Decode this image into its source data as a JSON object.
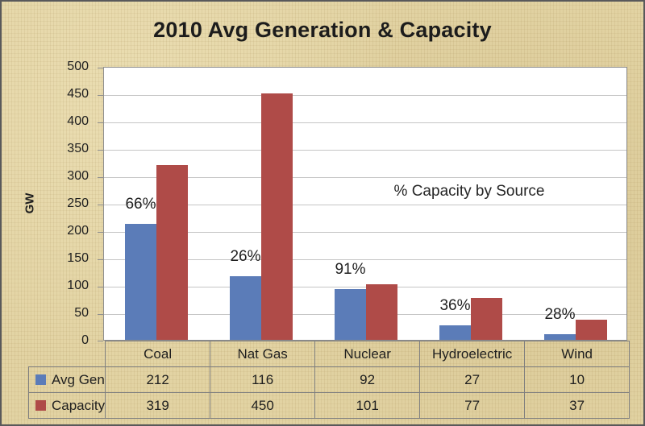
{
  "window": {
    "background_color": "#E2D3A3",
    "border_color": "#59595B",
    "plot_border_color": "#8E8E8E",
    "gridline_color": "#C5C5C5",
    "table_border_color": "#7F7F7F"
  },
  "chart_data": {
    "type": "bar",
    "title": "2010 Avg Generation & Capacity",
    "ylabel": "GW",
    "xlabel": "",
    "ylim": [
      0,
      500
    ],
    "yticks": [
      0,
      50,
      100,
      150,
      200,
      250,
      300,
      350,
      400,
      450,
      500
    ],
    "grid": true,
    "plot_background": "#FFFFFF",
    "categories": [
      "Coal",
      "Nat Gas",
      "Nuclear",
      "Hydroelectric",
      "Wind"
    ],
    "series": [
      {
        "name": "Avg Gen",
        "color": "#5B7CB8",
        "values": [
          212,
          116,
          92,
          27,
          10
        ]
      },
      {
        "name": "Capacity",
        "color": "#AF4B48",
        "values": [
          319,
          450,
          101,
          77,
          37
        ]
      }
    ],
    "bar_labels": [
      "66%",
      "26%",
      "91%",
      "36%",
      "28%"
    ],
    "annotation": "% Capacity by Source",
    "legend_position": "data-table-left",
    "data_table": true
  }
}
